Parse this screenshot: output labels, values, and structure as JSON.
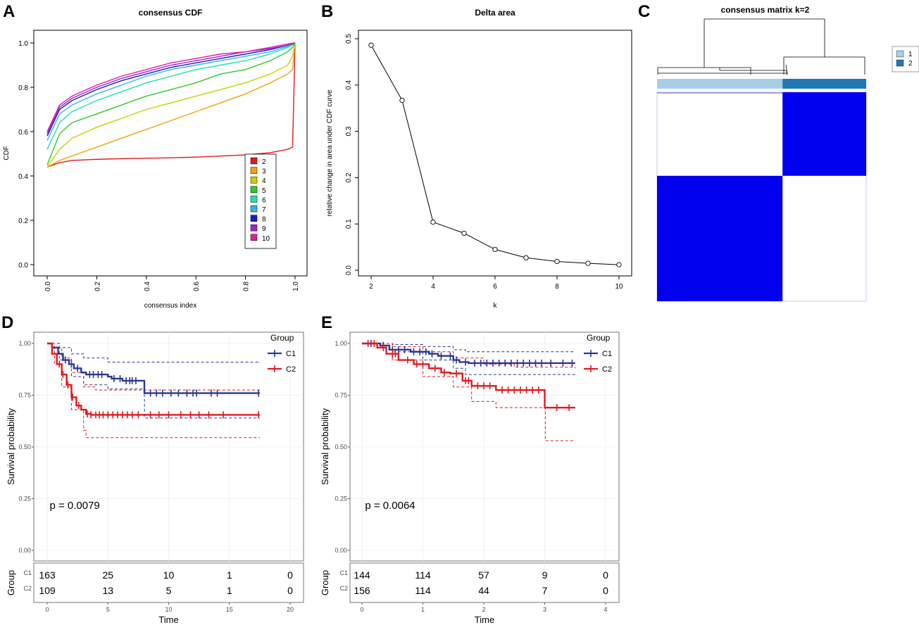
{
  "panels": {
    "A": "A",
    "B": "B",
    "C": "C",
    "D": "D",
    "E": "E"
  },
  "chart_data": [
    {
      "id": "A",
      "type": "line",
      "title": "consensus CDF",
      "xlabel": "consensus index",
      "ylabel": "CDF",
      "xlim": [
        0,
        1
      ],
      "ylim": [
        0,
        1
      ],
      "x_ticks": [
        "0.0",
        "0.2",
        "0.4",
        "0.6",
        "0.8",
        "1.0"
      ],
      "y_ticks": [
        "0.0",
        "0.2",
        "0.4",
        "0.6",
        "0.8",
        "1.0"
      ],
      "x": [
        0,
        0.05,
        0.1,
        0.2,
        0.3,
        0.4,
        0.5,
        0.6,
        0.7,
        0.8,
        0.9,
        0.97,
        0.99,
        1.0
      ],
      "series": [
        {
          "name": "2",
          "color": "#e41a1c",
          "values": [
            0.44,
            0.46,
            0.47,
            0.475,
            0.478,
            0.48,
            0.482,
            0.485,
            0.49,
            0.495,
            0.505,
            0.52,
            0.53,
            1.0
          ]
        },
        {
          "name": "3",
          "color": "#f0a30a",
          "values": [
            0.44,
            0.47,
            0.49,
            0.53,
            0.57,
            0.61,
            0.65,
            0.69,
            0.73,
            0.77,
            0.82,
            0.86,
            0.88,
            1.0
          ]
        },
        {
          "name": "4",
          "color": "#c4d400",
          "values": [
            0.44,
            0.52,
            0.57,
            0.62,
            0.66,
            0.7,
            0.73,
            0.76,
            0.79,
            0.82,
            0.86,
            0.9,
            0.94,
            1.0
          ]
        },
        {
          "name": "5",
          "color": "#2fcc24",
          "values": [
            0.45,
            0.59,
            0.64,
            0.68,
            0.72,
            0.76,
            0.79,
            0.82,
            0.86,
            0.88,
            0.92,
            0.96,
            0.98,
            1.0
          ]
        },
        {
          "name": "6",
          "color": "#20e0b0",
          "values": [
            0.52,
            0.64,
            0.69,
            0.74,
            0.78,
            0.82,
            0.85,
            0.88,
            0.9,
            0.92,
            0.95,
            0.98,
            0.99,
            1.0
          ]
        },
        {
          "name": "7",
          "color": "#33b5ee",
          "values": [
            0.56,
            0.68,
            0.72,
            0.77,
            0.81,
            0.85,
            0.88,
            0.9,
            0.92,
            0.94,
            0.96,
            0.985,
            0.995,
            1.0
          ]
        },
        {
          "name": "8",
          "color": "#1a1ad6",
          "values": [
            0.58,
            0.7,
            0.74,
            0.79,
            0.83,
            0.86,
            0.89,
            0.91,
            0.93,
            0.95,
            0.97,
            0.99,
            0.997,
            1.0
          ]
        },
        {
          "name": "9",
          "color": "#a020d8",
          "values": [
            0.59,
            0.71,
            0.75,
            0.8,
            0.84,
            0.87,
            0.9,
            0.92,
            0.94,
            0.96,
            0.975,
            0.99,
            0.998,
            1.0
          ]
        },
        {
          "name": "10",
          "color": "#e0209a",
          "values": [
            0.6,
            0.72,
            0.76,
            0.81,
            0.85,
            0.88,
            0.91,
            0.93,
            0.95,
            0.96,
            0.98,
            0.995,
            0.999,
            1.0
          ]
        }
      ]
    },
    {
      "id": "B",
      "type": "line",
      "title": "Delta area",
      "xlabel": "k",
      "ylabel": "relative change in area under CDF curve",
      "xlim": [
        2,
        10
      ],
      "ylim": [
        0,
        0.5
      ],
      "x_ticks": [
        "2",
        "4",
        "6",
        "8",
        "10"
      ],
      "y_ticks": [
        "0.0",
        "0.1",
        "0.2",
        "0.3",
        "0.4",
        "0.5"
      ],
      "x": [
        2,
        3,
        4,
        5,
        6,
        7,
        8,
        9,
        10
      ],
      "values": [
        0.486,
        0.367,
        0.104,
        0.08,
        0.045,
        0.027,
        0.019,
        0.015,
        0.012
      ]
    },
    {
      "id": "C",
      "type": "heatmap",
      "title": "consensus matrix k=2",
      "legend": [
        {
          "label": "1",
          "color": "#a6cfe6"
        },
        {
          "label": "2",
          "color": "#1f77b4"
        }
      ],
      "cluster_order": [
        "1",
        "2"
      ],
      "cluster_fraction": [
        0.6,
        0.4
      ],
      "fill_color": "#0000ee",
      "cells": [
        [
          0,
          1
        ],
        [
          1,
          0
        ]
      ]
    },
    {
      "id": "D",
      "type": "line",
      "ylabel": "Survival probability",
      "xlabel": "Time",
      "xlim": [
        0,
        20
      ],
      "ylim": [
        0,
        1
      ],
      "x_ticks": [
        "0",
        "5",
        "10",
        "15",
        "20"
      ],
      "y_ticks": [
        "0.00",
        "0.25",
        "0.50",
        "0.75",
        "1.00"
      ],
      "legend_title": "Group",
      "pvalue": "p = 0.0079",
      "risk_table": {
        "ylabel": "Group",
        "times": [
          0,
          5,
          10,
          15,
          20
        ],
        "rows": [
          {
            "group": "C1",
            "counts": [
              "163",
              "25",
              "10",
              "1",
              "0"
            ]
          },
          {
            "group": "C2",
            "counts": [
              "109",
              "13",
              "5",
              "1",
              "0"
            ]
          }
        ]
      },
      "series": [
        {
          "name": "C1",
          "color": "#2b3990",
          "steps": [
            [
              0,
              1
            ],
            [
              0.4,
              0.98
            ],
            [
              0.9,
              0.95
            ],
            [
              1.3,
              0.92
            ],
            [
              1.8,
              0.9
            ],
            [
              2.2,
              0.88
            ],
            [
              2.8,
              0.86
            ],
            [
              3.2,
              0.85
            ],
            [
              5,
              0.84
            ],
            [
              5.3,
              0.83
            ],
            [
              6.2,
              0.82
            ],
            [
              8,
              0.76
            ],
            [
              17.5,
              0.76
            ]
          ],
          "upper": [
            [
              0,
              1
            ],
            [
              1,
              0.98
            ],
            [
              2,
              0.95
            ],
            [
              3,
              0.93
            ],
            [
              5,
              0.91
            ],
            [
              17.5,
              0.905
            ]
          ],
          "lower": [
            [
              0,
              1
            ],
            [
              1,
              0.92
            ],
            [
              2,
              0.84
            ],
            [
              3,
              0.8
            ],
            [
              5,
              0.78
            ],
            [
              8,
              0.74
            ],
            [
              8.01,
              0.64
            ],
            [
              17.5,
              0.64
            ]
          ],
          "censors": [
            1.5,
            2,
            2.5,
            3.5,
            3.8,
            4.2,
            4.5,
            5.5,
            6,
            6.5,
            6.8,
            7,
            7.3,
            8.5,
            9,
            9.5,
            10.2,
            10.8,
            11.5,
            12,
            12.3,
            13.5,
            14,
            17.4
          ]
        },
        {
          "name": "C2",
          "color": "#e3191c",
          "steps": [
            [
              0,
              1
            ],
            [
              0.4,
              0.95
            ],
            [
              0.8,
              0.9
            ],
            [
              1.2,
              0.85
            ],
            [
              1.6,
              0.8
            ],
            [
              2,
              0.74
            ],
            [
              2.4,
              0.7
            ],
            [
              2.8,
              0.68
            ],
            [
              3.2,
              0.66
            ],
            [
              3.6,
              0.655
            ],
            [
              17.5,
              0.655
            ]
          ],
          "upper": [
            [
              0,
              1
            ],
            [
              0.6,
              0.98
            ],
            [
              1.2,
              0.93
            ],
            [
              2,
              0.86
            ],
            [
              3,
              0.79
            ],
            [
              4,
              0.775
            ],
            [
              17.5,
              0.775
            ]
          ],
          "lower": [
            [
              0,
              1
            ],
            [
              0.6,
              0.9
            ],
            [
              1.2,
              0.79
            ],
            [
              2,
              0.68
            ],
            [
              3,
              0.58
            ],
            [
              3.2,
              0.545
            ],
            [
              17.5,
              0.545
            ]
          ],
          "censors": [
            1,
            1.3,
            1.7,
            2.1,
            2.6,
            3.3,
            3.6,
            4,
            4.3,
            4.6,
            5,
            5.4,
            5.8,
            6.2,
            6.6,
            7,
            7.5,
            8.5,
            9.2,
            10,
            11,
            11.8,
            12.5,
            13.3,
            14.5,
            17.4
          ]
        }
      ]
    },
    {
      "id": "E",
      "type": "line",
      "ylabel": "Survival probability",
      "xlabel": "Time",
      "xlim": [
        0,
        4
      ],
      "ylim": [
        0,
        1
      ],
      "x_ticks": [
        "0",
        "1",
        "2",
        "3",
        "4"
      ],
      "y_ticks": [
        "0.00",
        "0.25",
        "0.50",
        "0.75",
        "1.00"
      ],
      "legend_title": "Group",
      "pvalue": "p = 0.0064",
      "risk_table": {
        "ylabel": "Group",
        "times": [
          0,
          1,
          2,
          3,
          4
        ],
        "rows": [
          {
            "group": "C1",
            "counts": [
              "144",
              "114",
              "57",
              "9",
              "0"
            ]
          },
          {
            "group": "C2",
            "counts": [
              "156",
              "114",
              "44",
              "7",
              "0"
            ]
          }
        ]
      },
      "series": [
        {
          "name": "C1",
          "color": "#2b3990",
          "steps": [
            [
              0,
              1
            ],
            [
              0.3,
              0.99
            ],
            [
              0.45,
              0.97
            ],
            [
              0.8,
              0.96
            ],
            [
              1.1,
              0.95
            ],
            [
              1.25,
              0.94
            ],
            [
              1.5,
              0.92
            ],
            [
              1.6,
              0.91
            ],
            [
              1.75,
              0.905
            ],
            [
              3.5,
              0.905
            ]
          ],
          "upper": [
            [
              0,
              1
            ],
            [
              0.5,
              0.995
            ],
            [
              1,
              0.985
            ],
            [
              1.5,
              0.97
            ],
            [
              1.7,
              0.96
            ],
            [
              3.5,
              0.96
            ]
          ],
          "lower": [
            [
              0,
              1
            ],
            [
              0.5,
              0.96
            ],
            [
              1,
              0.92
            ],
            [
              1.5,
              0.88
            ],
            [
              1.7,
              0.85
            ],
            [
              3.5,
              0.85
            ]
          ],
          "censors": [
            0.15,
            0.35,
            0.5,
            0.6,
            0.7,
            0.85,
            0.95,
            1.05,
            1.15,
            1.3,
            1.45,
            1.55,
            1.7,
            1.85,
            1.95,
            2.05,
            2.15,
            2.25,
            2.35,
            2.45,
            2.55,
            2.65,
            2.75,
            2.85,
            2.95,
            3.1,
            3.3,
            3.45
          ]
        },
        {
          "name": "C2",
          "color": "#e3191c",
          "steps": [
            [
              0,
              1
            ],
            [
              0.25,
              0.98
            ],
            [
              0.4,
              0.95
            ],
            [
              0.6,
              0.92
            ],
            [
              0.85,
              0.9
            ],
            [
              1.1,
              0.88
            ],
            [
              1.3,
              0.86
            ],
            [
              1.45,
              0.855
            ],
            [
              1.65,
              0.82
            ],
            [
              1.8,
              0.795
            ],
            [
              2.2,
              0.775
            ],
            [
              3.0,
              0.69
            ],
            [
              3.5,
              0.69
            ]
          ],
          "upper": [
            [
              0,
              1
            ],
            [
              0.5,
              0.985
            ],
            [
              1,
              0.96
            ],
            [
              1.5,
              0.93
            ],
            [
              2,
              0.9
            ],
            [
              2.5,
              0.885
            ],
            [
              3.5,
              0.88
            ]
          ],
          "lower": [
            [
              0,
              1
            ],
            [
              0.5,
              0.92
            ],
            [
              1,
              0.84
            ],
            [
              1.5,
              0.79
            ],
            [
              1.8,
              0.72
            ],
            [
              2.2,
              0.69
            ],
            [
              3,
              0.69
            ],
            [
              3.01,
              0.53
            ],
            [
              3.5,
              0.53
            ]
          ],
          "censors": [
            0.1,
            0.2,
            0.35,
            0.5,
            0.55,
            0.75,
            0.9,
            1.0,
            1.2,
            1.35,
            1.55,
            1.7,
            1.75,
            1.9,
            2.0,
            2.1,
            2.3,
            2.4,
            2.5,
            2.6,
            2.7,
            2.8,
            2.9,
            3.2,
            3.4
          ]
        }
      ]
    }
  ]
}
